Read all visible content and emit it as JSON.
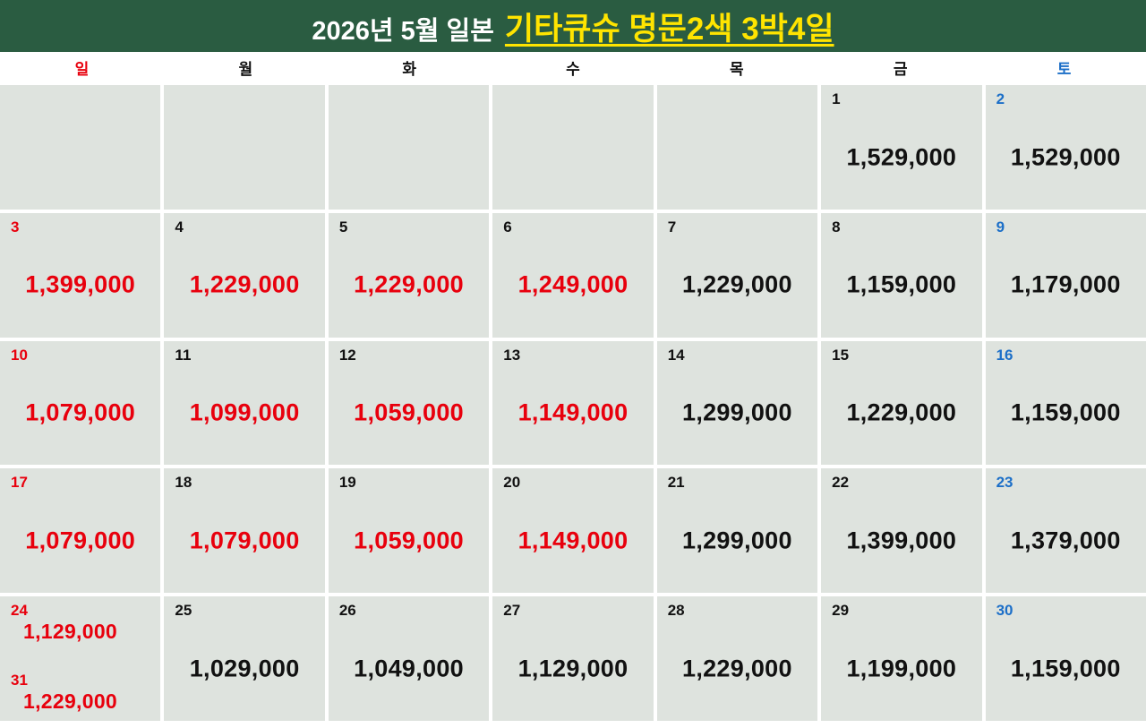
{
  "title": {
    "prefix": "2026년 5월 일본",
    "highlight": "기타큐슈 명문2색 3박4일"
  },
  "colors": {
    "header_bg": "#2a5c41",
    "title_prefix": "#ffffff",
    "title_highlight": "#ffe400",
    "cell_bg": "#dee3de",
    "map": {
      "red": "#e8000d",
      "blue": "#1c6fc8",
      "black": "#111111"
    }
  },
  "weekdays": [
    {
      "label": "일",
      "color": "red"
    },
    {
      "label": "월",
      "color": "black"
    },
    {
      "label": "화",
      "color": "black"
    },
    {
      "label": "수",
      "color": "black"
    },
    {
      "label": "목",
      "color": "black"
    },
    {
      "label": "금",
      "color": "black"
    },
    {
      "label": "토",
      "color": "blue"
    }
  ],
  "calendar": {
    "weeks": [
      [
        null,
        null,
        null,
        null,
        null,
        {
          "day": "1",
          "day_color": "black",
          "price": "1,529,000",
          "price_color": "black"
        },
        {
          "day": "2",
          "day_color": "blue",
          "price": "1,529,000",
          "price_color": "black"
        }
      ],
      [
        {
          "day": "3",
          "day_color": "red",
          "price": "1,399,000",
          "price_color": "red"
        },
        {
          "day": "4",
          "day_color": "black",
          "price": "1,229,000",
          "price_color": "red"
        },
        {
          "day": "5",
          "day_color": "black",
          "price": "1,229,000",
          "price_color": "red"
        },
        {
          "day": "6",
          "day_color": "black",
          "price": "1,249,000",
          "price_color": "red"
        },
        {
          "day": "7",
          "day_color": "black",
          "price": "1,229,000",
          "price_color": "black"
        },
        {
          "day": "8",
          "day_color": "black",
          "price": "1,159,000",
          "price_color": "black"
        },
        {
          "day": "9",
          "day_color": "blue",
          "price": "1,179,000",
          "price_color": "black"
        }
      ],
      [
        {
          "day": "10",
          "day_color": "red",
          "price": "1,079,000",
          "price_color": "red"
        },
        {
          "day": "11",
          "day_color": "black",
          "price": "1,099,000",
          "price_color": "red"
        },
        {
          "day": "12",
          "day_color": "black",
          "price": "1,059,000",
          "price_color": "red"
        },
        {
          "day": "13",
          "day_color": "black",
          "price": "1,149,000",
          "price_color": "red"
        },
        {
          "day": "14",
          "day_color": "black",
          "price": "1,299,000",
          "price_color": "black"
        },
        {
          "day": "15",
          "day_color": "black",
          "price": "1,229,000",
          "price_color": "black"
        },
        {
          "day": "16",
          "day_color": "blue",
          "price": "1,159,000",
          "price_color": "black"
        }
      ],
      [
        {
          "day": "17",
          "day_color": "red",
          "price": "1,079,000",
          "price_color": "red"
        },
        {
          "day": "18",
          "day_color": "black",
          "price": "1,079,000",
          "price_color": "red"
        },
        {
          "day": "19",
          "day_color": "black",
          "price": "1,059,000",
          "price_color": "red"
        },
        {
          "day": "20",
          "day_color": "black",
          "price": "1,149,000",
          "price_color": "red"
        },
        {
          "day": "21",
          "day_color": "black",
          "price": "1,299,000",
          "price_color": "black"
        },
        {
          "day": "22",
          "day_color": "black",
          "price": "1,399,000",
          "price_color": "black"
        },
        {
          "day": "23",
          "day_color": "blue",
          "price": "1,379,000",
          "price_color": "black"
        }
      ],
      [
        {
          "day_color": "red",
          "price_color": "red",
          "entries": [
            {
              "day": "24",
              "price": "1,129,000"
            },
            {
              "day": "31",
              "price": "1,229,000"
            }
          ]
        },
        {
          "day": "25",
          "day_color": "black",
          "price": "1,029,000",
          "price_color": "black"
        },
        {
          "day": "26",
          "day_color": "black",
          "price": "1,049,000",
          "price_color": "black"
        },
        {
          "day": "27",
          "day_color": "black",
          "price": "1,129,000",
          "price_color": "black"
        },
        {
          "day": "28",
          "day_color": "black",
          "price": "1,229,000",
          "price_color": "black"
        },
        {
          "day": "29",
          "day_color": "black",
          "price": "1,199,000",
          "price_color": "black"
        },
        {
          "day": "30",
          "day_color": "blue",
          "price": "1,159,000",
          "price_color": "black"
        }
      ]
    ]
  }
}
